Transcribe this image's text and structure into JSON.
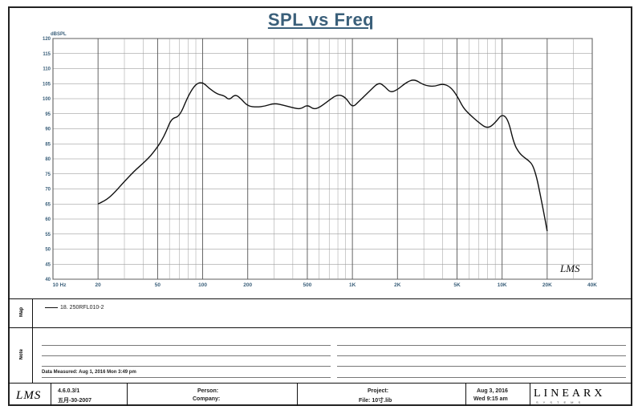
{
  "chart_data": {
    "type": "line",
    "title": "SPL vs Freq",
    "ylabel": "dBSPL",
    "xscale": "log",
    "xlim": [
      10,
      40000
    ],
    "ylim": [
      40,
      120
    ],
    "x_tick_labels": [
      "10 Hz",
      "20",
      "50",
      "100",
      "200",
      "500",
      "1K",
      "2K",
      "5K",
      "10K",
      "20K",
      "40K"
    ],
    "x_tick_values": [
      10,
      20,
      50,
      100,
      200,
      500,
      1000,
      2000,
      5000,
      10000,
      20000,
      40000
    ],
    "y_ticks": [
      40,
      45,
      50,
      55,
      60,
      65,
      70,
      75,
      80,
      85,
      90,
      95,
      100,
      105,
      110,
      115,
      120
    ],
    "grid": true,
    "watermark": "LMS",
    "series": [
      {
        "name": "18. 250RFL010-2",
        "color": "#111111",
        "x": [
          20,
          23,
          26,
          30,
          35,
          40,
          45,
          50,
          53,
          57,
          62,
          70,
          80,
          90,
          100,
          110,
          125,
          140,
          150,
          165,
          180,
          200,
          230,
          260,
          300,
          350,
          400,
          450,
          500,
          550,
          600,
          700,
          800,
          900,
          1000,
          1100,
          1300,
          1500,
          1650,
          1800,
          2000,
          2300,
          2600,
          3000,
          3500,
          4000,
          4500,
          5000,
          5500,
          6000,
          7000,
          8000,
          9000,
          10000,
          11000,
          12000,
          13000,
          14000,
          15000,
          16000,
          17000,
          18000,
          19000,
          20000
        ],
        "y": [
          65,
          66.5,
          69,
          72.5,
          76,
          78.5,
          81,
          84,
          86,
          89,
          93.5,
          94,
          101,
          105,
          105.5,
          103.5,
          101.5,
          101,
          99.5,
          101.5,
          100,
          97.5,
          97.2,
          97.5,
          98.5,
          97.8,
          97,
          96.5,
          98,
          96.5,
          97,
          99.5,
          101.5,
          100.5,
          97,
          99,
          102.5,
          105.5,
          104,
          102,
          103,
          105.5,
          106.5,
          104.5,
          104,
          105,
          104,
          101,
          97,
          95,
          92,
          90,
          92,
          95,
          93,
          85,
          82,
          80.5,
          79.5,
          78,
          74,
          68,
          62,
          56
        ]
      }
    ]
  },
  "footer": {
    "map_label": "Map",
    "note_label": "Note",
    "data_measured": "Data Measured: Aug 1, 2016  Mon  3:49 pm",
    "lms_logo": "LMS",
    "version_line1": "4.6.0.3/1",
    "version_line2": "五月-30-2007",
    "person_label": "Person:",
    "company_label": "Company:",
    "project_label": "Project:",
    "file_label": "File: 10寸.lib",
    "date_line1": "Aug 3, 2016",
    "date_line2": "Wed  9:15 am",
    "brand": "LINEARX",
    "brand_sub": "SYSTEMS"
  }
}
